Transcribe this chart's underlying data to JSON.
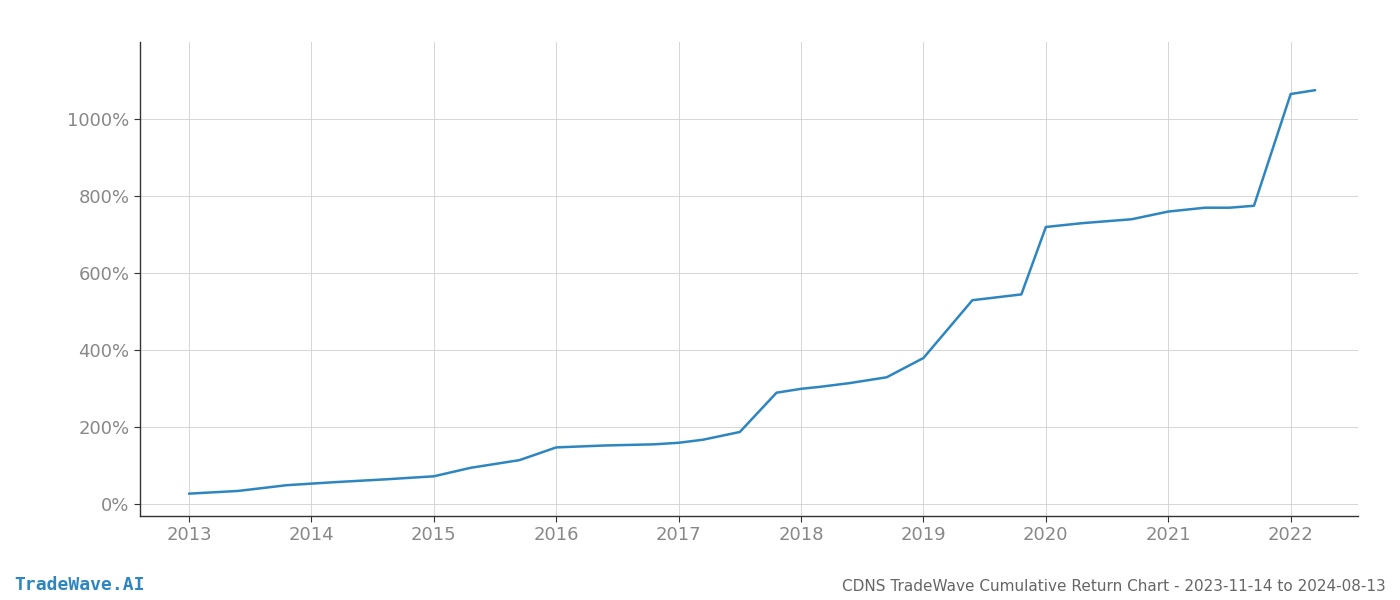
{
  "title": "CDNS TradeWave Cumulative Return Chart - 2023-11-14 to 2024-08-13",
  "watermark": "TradeWave.AI",
  "line_color": "#2e86c1",
  "background_color": "#ffffff",
  "grid_color": "#d0d0d0",
  "x_years": [
    2013,
    2014,
    2015,
    2016,
    2017,
    2018,
    2019,
    2020,
    2021,
    2022
  ],
  "x_values": [
    2013.0,
    2013.4,
    2013.8,
    2014.2,
    2014.6,
    2015.0,
    2015.3,
    2015.7,
    2016.0,
    2016.4,
    2016.8,
    2017.0,
    2017.2,
    2017.5,
    2017.8,
    2018.0,
    2018.15,
    2018.4,
    2018.7,
    2019.0,
    2019.4,
    2019.8,
    2020.0,
    2020.3,
    2020.7,
    2021.0,
    2021.3,
    2021.5,
    2021.7,
    2022.0,
    2022.2
  ],
  "y_values": [
    28,
    35,
    50,
    58,
    65,
    73,
    95,
    115,
    148,
    153,
    156,
    160,
    168,
    188,
    290,
    300,
    305,
    315,
    330,
    380,
    530,
    545,
    720,
    730,
    740,
    760,
    770,
    770,
    775,
    1065,
    1075
  ],
  "yticks": [
    0,
    200,
    400,
    600,
    800,
    1000
  ],
  "ylim": [
    -30,
    1200
  ],
  "xlim": [
    2012.6,
    2022.55
  ],
  "title_fontsize": 11,
  "tick_fontsize": 13,
  "watermark_fontsize": 13,
  "line_width": 1.8,
  "spine_color": "#333333",
  "tick_color": "#888888"
}
